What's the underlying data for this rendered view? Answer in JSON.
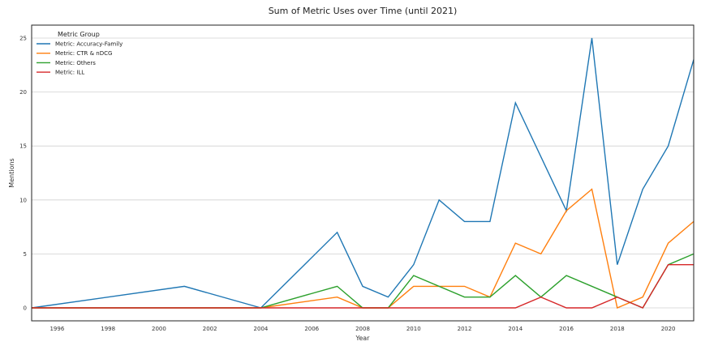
{
  "chart_data": {
    "type": "line",
    "title": "Sum of Metric Uses over Time (until 2021)",
    "xlabel": "Year",
    "ylabel": "Mentions",
    "xlim": [
      1995,
      2021
    ],
    "ylim": [
      -1.2,
      26.2
    ],
    "xticks": [
      1996,
      1998,
      2000,
      2002,
      2004,
      2006,
      2008,
      2010,
      2012,
      2014,
      2016,
      2018,
      2020
    ],
    "yticks": [
      0,
      5,
      10,
      15,
      20,
      25
    ],
    "grid": "horizontal",
    "legend": {
      "title": "Metric Group",
      "placement": "top-left"
    },
    "series": [
      {
        "name": "Metric: Accuracy-Family",
        "color": "#1f77b4",
        "x": [
          1995,
          2001,
          2004,
          2007,
          2008,
          2009,
          2010,
          2011,
          2012,
          2013,
          2014,
          2016,
          2017,
          2018,
          2019,
          2020,
          2021
        ],
        "values": [
          0,
          2,
          0,
          7,
          2,
          1,
          4,
          10,
          8,
          8,
          19,
          9,
          25,
          4,
          11,
          15,
          23
        ]
      },
      {
        "name": "Metric: CTR & nDCG",
        "color": "#ff7f0e",
        "x": [
          1995,
          2004,
          2007,
          2008,
          2009,
          2010,
          2012,
          2013,
          2014,
          2015,
          2016,
          2017,
          2018,
          2019,
          2020,
          2021
        ],
        "values": [
          0,
          0,
          1,
          0,
          0,
          2,
          2,
          1,
          6,
          5,
          9,
          11,
          0,
          1,
          6,
          8
        ]
      },
      {
        "name": "Metric: Others",
        "color": "#2ca02c",
        "x": [
          1995,
          2004,
          2007,
          2008,
          2009,
          2010,
          2012,
          2013,
          2014,
          2015,
          2016,
          2018,
          2019,
          2020,
          2021
        ],
        "values": [
          0,
          0,
          2,
          0,
          0,
          3,
          1,
          1,
          3,
          1,
          3,
          1,
          0,
          4,
          5
        ]
      },
      {
        "name": "Metric: ILL",
        "color": "#d62728",
        "x": [
          1995,
          2014,
          2015,
          2016,
          2017,
          2018,
          2019,
          2020,
          2021
        ],
        "values": [
          0,
          0,
          1,
          0,
          0,
          1,
          0,
          4,
          4
        ]
      }
    ]
  }
}
